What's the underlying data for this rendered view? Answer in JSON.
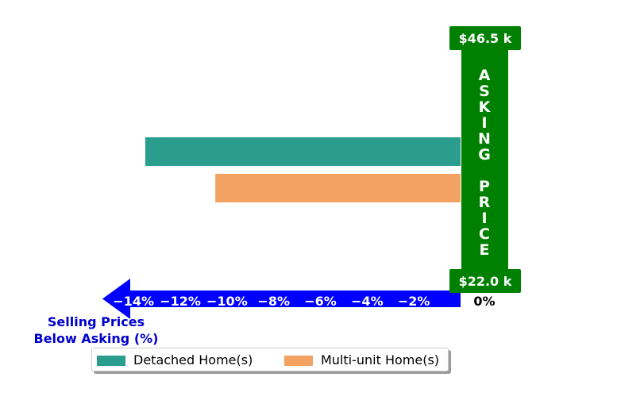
{
  "chart_data": {
    "type": "bar",
    "orientation": "horizontal",
    "xlabel": "Selling Prices\nBelow Asking (%)",
    "xlim": [
      -15.3,
      0
    ],
    "xticks": [
      -14,
      -12,
      -10,
      -8,
      -6,
      -4,
      -2,
      0
    ],
    "tick_labels": [
      "−14%",
      "−12%",
      "−10%",
      "−8%",
      "−6%",
      "−4%",
      "−2%",
      "0%"
    ],
    "series": [
      {
        "name": "Detached Home(s)",
        "values": [
          -13.5
        ],
        "color": "#2a9d8f"
      },
      {
        "name": "Multi-unit Home(s)",
        "values": [
          -10.5
        ],
        "color": "#f4a261"
      }
    ],
    "asking_price_label": "A S K I N G   P R I C E",
    "asking_price_letters": [
      "A",
      "S",
      "K",
      "I",
      "N",
      "G",
      "",
      "P",
      "R",
      "I",
      "C",
      "E"
    ],
    "price_top": "$46.5 k",
    "price_bottom": "$22.0 k",
    "legend_position": "bottom",
    "grid": false,
    "colors": {
      "asking_bar": "#008000",
      "arrow": "#0000ff",
      "axis_label": "#0000cc"
    }
  }
}
